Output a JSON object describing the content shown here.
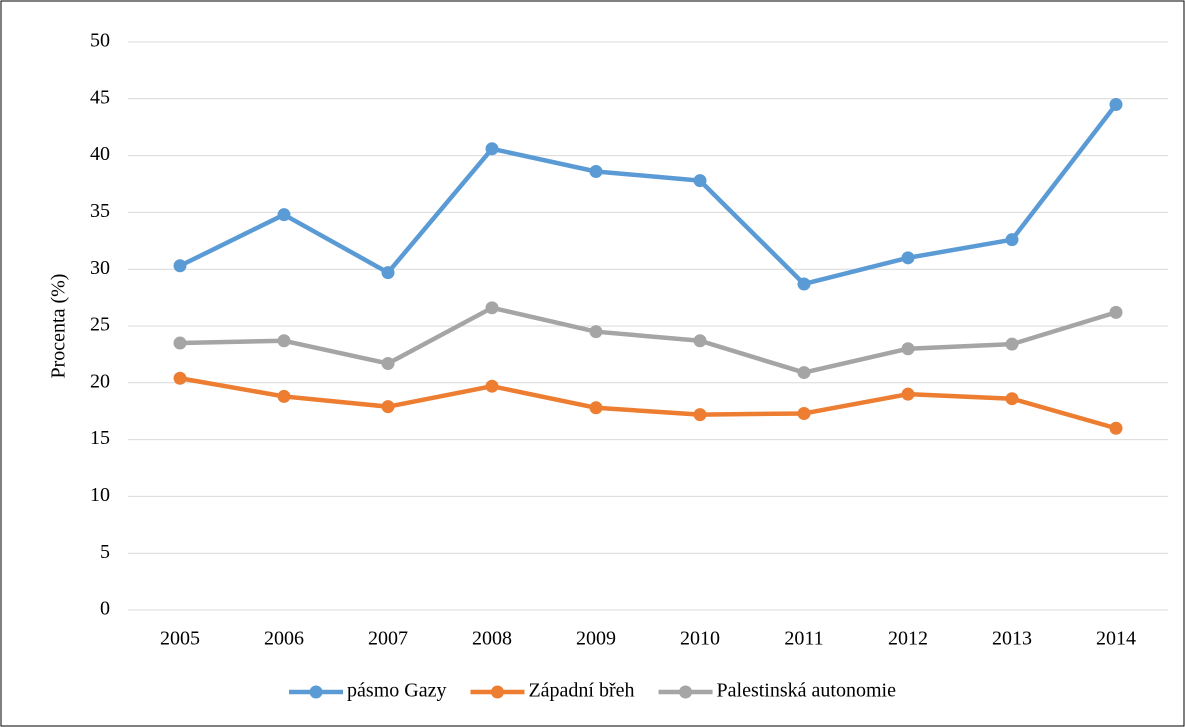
{
  "chart_data": {
    "type": "line",
    "y_label": "Procenta (%)",
    "categories": [
      "2005",
      "2006",
      "2007",
      "2008",
      "2009",
      "2010",
      "2011",
      "2012",
      "2013",
      "2014"
    ],
    "series": [
      {
        "name": "pásmo Gazy",
        "color": "#5b9bd5",
        "values": [
          30.3,
          34.8,
          29.7,
          40.6,
          38.6,
          37.8,
          28.7,
          31.0,
          32.6,
          44.5
        ]
      },
      {
        "name": "Západní břeh",
        "color": "#ed7d31",
        "values": [
          20.4,
          18.8,
          17.9,
          19.7,
          17.8,
          17.2,
          17.3,
          19.0,
          18.6,
          16.0
        ]
      },
      {
        "name": "Palestinská autonomie",
        "color": "#a5a5a5",
        "values": [
          23.5,
          23.7,
          21.7,
          26.6,
          24.5,
          23.7,
          20.9,
          23.0,
          23.4,
          26.2
        ]
      }
    ],
    "ylim": [
      0,
      50
    ],
    "yticks": [
      0,
      5,
      10,
      15,
      20,
      25,
      30,
      35,
      40,
      45,
      50
    ],
    "grid": true,
    "legend": "bottom"
  }
}
